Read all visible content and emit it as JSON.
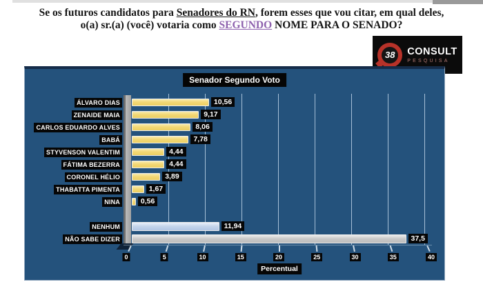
{
  "question": {
    "line1_pre": "Se os futuros candidatos para ",
    "line1_underlined": "Senadores do RN",
    "line1_post": ", forem esses que vou citar, em qual deles,",
    "line2_pre": "o(a) sr.(a) (você) votaria como ",
    "line2_underlined": "SEGUNDO",
    "line2_post": " NOME PARA O SENADO?"
  },
  "logo": {
    "badge": "38",
    "name": "CONSULT",
    "subtitle": "PESQUISA"
  },
  "colors": {
    "panel_bg": "#24527C",
    "bar_yellow": "#F3D876",
    "bar_blue": "#C3D3EA",
    "bar_gray": "#C8C8C8",
    "gridline": "#B7CDE2",
    "label_box_bg": "#060606",
    "accent_red": "#B73229",
    "underline_purple": "#8E62AE"
  },
  "chart_data": {
    "type": "bar",
    "orientation": "horizontal",
    "title": "Senador Segundo Voto",
    "xlabel": "Percentual",
    "xlim": [
      0,
      40
    ],
    "xticks": [
      "0",
      "5",
      "10",
      "15",
      "20",
      "25",
      "30",
      "35",
      "40"
    ],
    "grid": true,
    "bars": [
      {
        "label": "ÁLVARO DIAS",
        "value": 10.56,
        "display": "10,56",
        "color": "yellow"
      },
      {
        "label": "ZENAIDE MAIA",
        "value": 9.17,
        "display": "9,17",
        "color": "yellow"
      },
      {
        "label": "CARLOS EDUARDO ALVES",
        "value": 8.06,
        "display": "8,06",
        "color": "yellow"
      },
      {
        "label": "BABÁ",
        "value": 7.78,
        "display": "7,78",
        "color": "yellow"
      },
      {
        "label": "STYVENSON VALENTIM",
        "value": 4.44,
        "display": "4,44",
        "color": "yellow"
      },
      {
        "label": "FÁTIMA BEZERRA",
        "value": 4.44,
        "display": "4,44",
        "color": "yellow"
      },
      {
        "label": "CORONEL HÉLIO",
        "value": 3.89,
        "display": "3,89",
        "color": "yellow"
      },
      {
        "label": "THABATTA PIMENTA",
        "value": 1.67,
        "display": "1,67",
        "color": "yellow"
      },
      {
        "label": "NINA",
        "value": 0.56,
        "display": "0,56",
        "color": "yellow"
      },
      {
        "label": "NENHUM",
        "value": 11.94,
        "display": "11,94",
        "color": "blue",
        "gap_before": true
      },
      {
        "label": "NÃO SABE DIZER",
        "value": 37.5,
        "display": "37,5",
        "color": "gray"
      }
    ]
  }
}
